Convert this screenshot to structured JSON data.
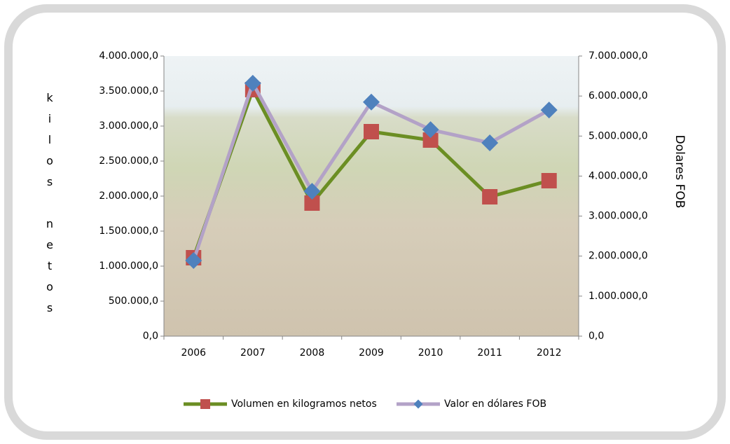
{
  "chart_data": {
    "type": "line",
    "y_label": "kilos netos",
    "y2_label": "Dolares FOB",
    "categories": [
      "2006",
      "2007",
      "2008",
      "2009",
      "2010",
      "2011",
      "2012"
    ],
    "series": [
      {
        "name": "Volumen en kilogramos netos",
        "color": "#6b8e23",
        "marker_color": "#c0504d",
        "marker": "square",
        "values": [
          1120000,
          3520000,
          1900000,
          2920000,
          2800000,
          1990000,
          2220000
        ]
      },
      {
        "name": "Valor en dólares FOB",
        "color": "#b3a2c7",
        "marker_color": "#4f81bd",
        "marker": "diamond",
        "axis": "y2",
        "values": [
          1890000,
          6320000,
          3620000,
          5850000,
          5160000,
          4830000,
          5650000
        ]
      }
    ],
    "ylim": [
      0,
      4000000
    ],
    "yticks": [
      {
        "value": 0,
        "label": "0,0"
      },
      {
        "value": 500000,
        "label": "500.000,0"
      },
      {
        "value": 1000000,
        "label": "1.000.000,0"
      },
      {
        "value": 1500000,
        "label": "1.500.000,0"
      },
      {
        "value": 2000000,
        "label": "2.000.000,0"
      },
      {
        "value": 2500000,
        "label": "2.500.000,0"
      },
      {
        "value": 3000000,
        "label": "3.000.000,0"
      },
      {
        "value": 3500000,
        "label": "3.500.000,0"
      },
      {
        "value": 4000000,
        "label": "4.000.000,0"
      }
    ],
    "y2lim": [
      0,
      7000000
    ],
    "y2ticks": [
      {
        "value": 0,
        "label": "0,0"
      },
      {
        "value": 1000000,
        "label": "1.000.000,0"
      },
      {
        "value": 2000000,
        "label": "2.000.000,0"
      },
      {
        "value": 3000000,
        "label": "3.000.000,0"
      },
      {
        "value": 4000000,
        "label": "4.000.000,0"
      },
      {
        "value": 5000000,
        "label": "5.000.000,0"
      },
      {
        "value": 6000000,
        "label": "6.000.000,0"
      },
      {
        "value": 7000000,
        "label": "7.000.000,0"
      }
    ],
    "legend": "bottom"
  }
}
